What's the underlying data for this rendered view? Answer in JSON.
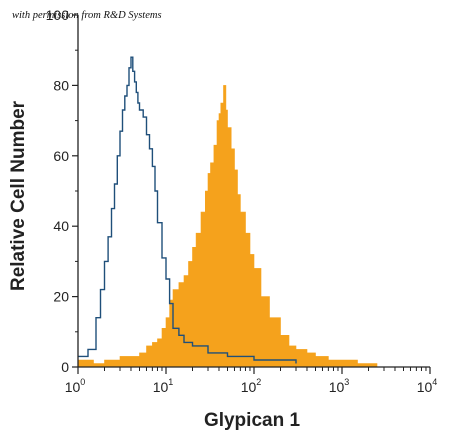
{
  "permission_note": "with permission from R&D Systems",
  "chart_data": {
    "type": "histogram",
    "xlabel": "Glypican 1",
    "ylabel": "Relative Cell Number",
    "x_scale": "log",
    "xlim": [
      1,
      10000
    ],
    "ylim": [
      0,
      100
    ],
    "x_ticks": [
      {
        "value": 1,
        "base": "10",
        "exp": "0"
      },
      {
        "value": 10,
        "base": "10",
        "exp": "1"
      },
      {
        "value": 100,
        "base": "10",
        "exp": "2"
      },
      {
        "value": 1000,
        "base": "10",
        "exp": "3"
      },
      {
        "value": 10000,
        "base": "10",
        "exp": "4"
      }
    ],
    "y_ticks": [
      {
        "value": 0,
        "label": "0"
      },
      {
        "value": 20,
        "label": "20"
      },
      {
        "value": 40,
        "label": "40"
      },
      {
        "value": 60,
        "label": "60"
      },
      {
        "value": 80,
        "label": "80"
      },
      {
        "value": 100,
        "label": "100"
      }
    ],
    "colors": {
      "filled": "#f5a21c",
      "outline": "#1f4f7a",
      "axis": "#222222"
    },
    "series": [
      {
        "style": "filled",
        "color": "#f5a21c",
        "x": [
          1.0,
          1.5,
          2.0,
          3.0,
          4.0,
          5.0,
          6.0,
          7.0,
          8.0,
          9.0,
          10.0,
          11.0,
          12.0,
          14.0,
          16.0,
          18.0,
          20.0,
          22.0,
          25.0,
          28.0,
          30.0,
          32.0,
          35.0,
          38.0,
          40.0,
          42.0,
          45.0,
          48.0,
          50.0,
          55.0,
          60.0,
          65.0,
          70.0,
          80.0,
          90.0,
          100.0,
          120.0,
          150.0,
          200.0,
          250.0,
          300.0,
          400.0,
          500.0,
          700.0,
          1000.0,
          1500.0,
          2000.0,
          2500.0
        ],
        "y": [
          2,
          1,
          2,
          3,
          3,
          4,
          6,
          7,
          8,
          11,
          14,
          19,
          22,
          24,
          26,
          30,
          34,
          38,
          44,
          50,
          55,
          58,
          63,
          70,
          72,
          75,
          80,
          73,
          68,
          62,
          56,
          49,
          44,
          38,
          32,
          28,
          20,
          14,
          9,
          6,
          5,
          4,
          3,
          2,
          2,
          1,
          1,
          0
        ]
      },
      {
        "style": "outline",
        "color": "#1f4f7a",
        "x": [
          1.0,
          1.3,
          1.6,
          1.8,
          2.0,
          2.2,
          2.4,
          2.6,
          2.8,
          3.0,
          3.2,
          3.4,
          3.6,
          3.8,
          4.0,
          4.2,
          4.4,
          4.6,
          4.8,
          5.0,
          5.5,
          6.0,
          6.5,
          7.0,
          7.5,
          8.0,
          9.0,
          10.0,
          11.0,
          12.0,
          14.0,
          16.0,
          20.0,
          30.0,
          50.0,
          100.0,
          300.0
        ],
        "y": [
          3,
          5,
          14,
          22,
          30,
          37,
          45,
          52,
          60,
          67,
          73,
          77,
          80,
          85,
          88,
          84,
          81,
          78,
          75,
          73,
          71,
          66,
          62,
          57,
          50,
          41,
          31,
          25,
          18,
          11,
          9,
          7,
          6,
          4,
          3,
          2,
          1
        ]
      }
    ]
  }
}
